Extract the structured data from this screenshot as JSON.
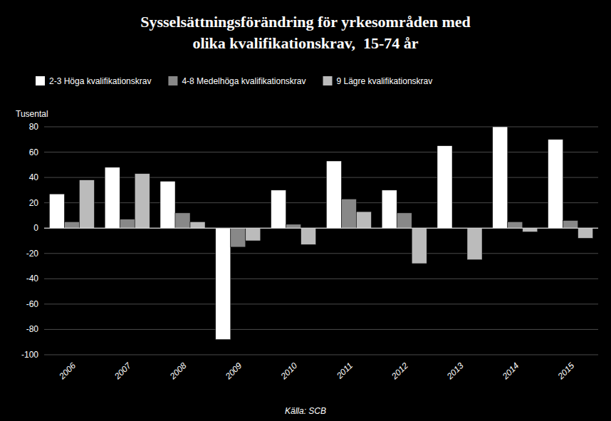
{
  "chart_data": {
    "type": "bar",
    "title": "Sysselsättningsförändring för yrkesområden med\nolika kvalifikationskrav,  15-74 år",
    "subtitle": "Tusental",
    "xlabel": "Källa: SCB",
    "categories": [
      "2006",
      "2007",
      "2008",
      "2009",
      "2010",
      "2011",
      "2012",
      "2013",
      "2014",
      "2015"
    ],
    "series": [
      {
        "name": "2-3 Höga kvalifikationskrav",
        "color": "#ffffff",
        "values": [
          27,
          48,
          37,
          -88,
          30,
          53,
          30,
          65,
          80,
          70
        ]
      },
      {
        "name": "4-8 Medelhöga kvalifikationskrav",
        "color": "#888888",
        "values": [
          5,
          7,
          12,
          -15,
          3,
          23,
          12,
          0,
          5,
          6
        ]
      },
      {
        "name": "9 Lägre kvalifikationskrav",
        "color": "#bbbbbb",
        "values": [
          38,
          43,
          5,
          -10,
          -13,
          13,
          -28,
          -25,
          -3,
          -8
        ]
      }
    ],
    "ylim": [
      -100,
      80
    ],
    "yticks": [
      -100,
      -80,
      -60,
      -40,
      -20,
      0,
      20,
      40,
      60,
      80
    ],
    "grid": true,
    "legend": "top-left"
  }
}
